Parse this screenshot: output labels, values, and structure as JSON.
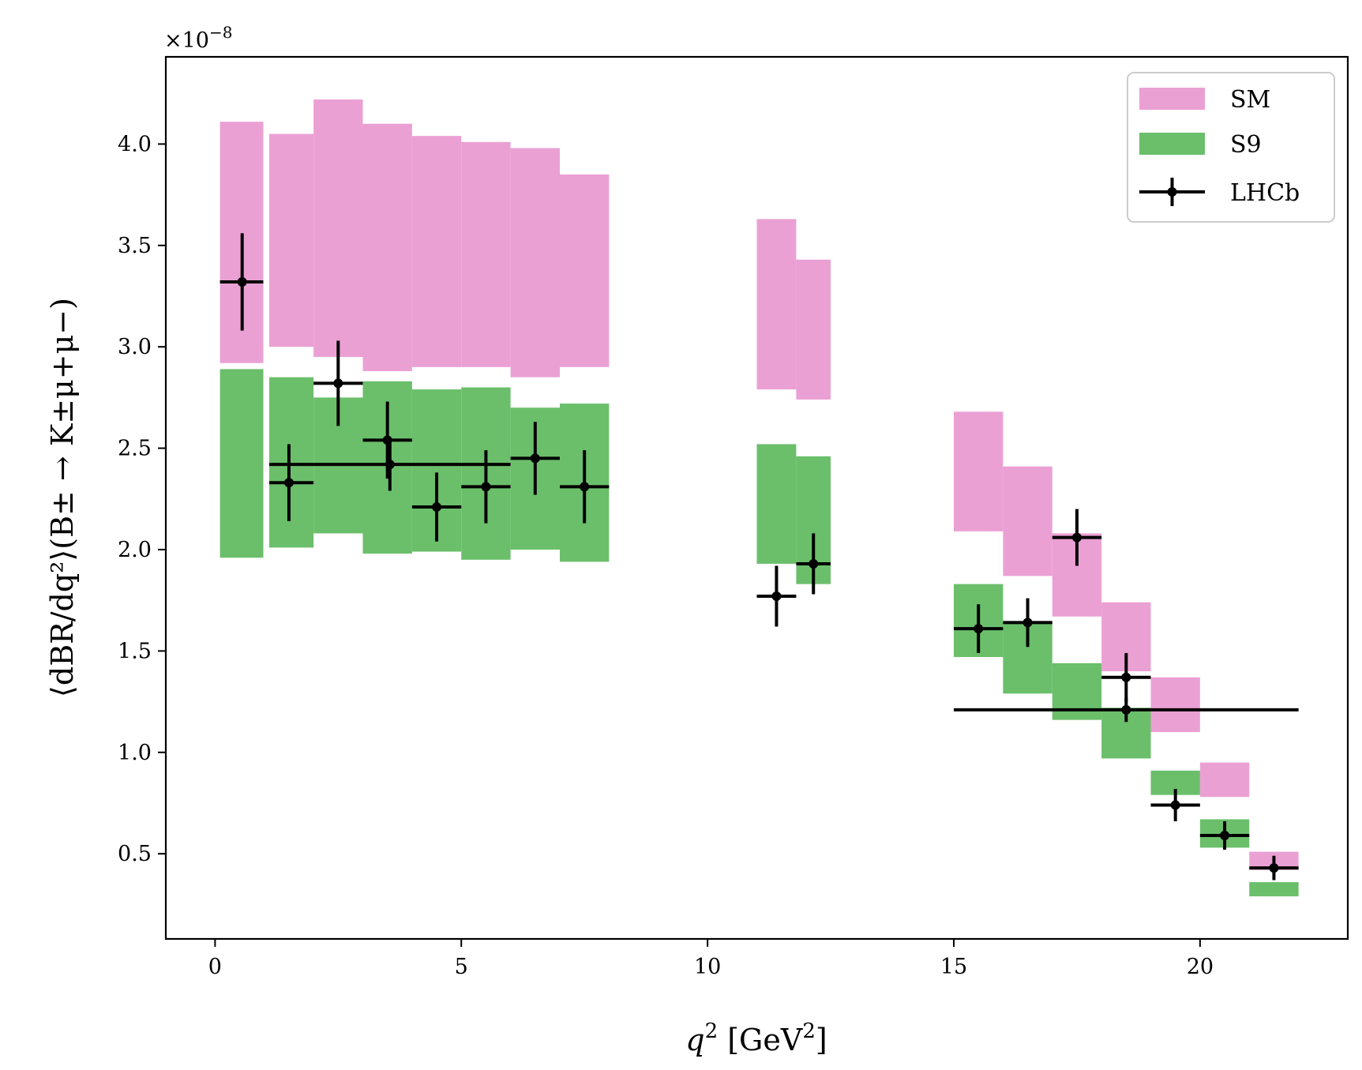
{
  "chart_data": {
    "type": "bar",
    "xlabel_var": "q",
    "xlabel_sup": "2",
    "xlabel_unit": "[GeV",
    "xlabel_unit_sup": "2",
    "xlabel_close": "]",
    "ylabel": "⟨dBR/dq²⟩(B± → K±μ+μ−)",
    "y_exponent_label": "×10",
    "y_exponent_sup": "−8",
    "xlim": [
      -1,
      23
    ],
    "ylim": [
      0.08,
      4.43
    ],
    "x_ticks": [
      0,
      5,
      10,
      15,
      20
    ],
    "x_tick_labels": [
      "0",
      "5",
      "10",
      "15",
      "20"
    ],
    "y_ticks": [
      0.5,
      1.0,
      1.5,
      2.0,
      2.5,
      3.0,
      3.5,
      4.0
    ],
    "y_tick_labels": [
      "0.5",
      "1.0",
      "1.5",
      "2.0",
      "2.5",
      "3.0",
      "3.5",
      "4.0"
    ],
    "legend": {
      "position": "top-right",
      "entries": [
        {
          "label": "SM",
          "kind": "band",
          "color": "#eba0d4"
        },
        {
          "label": "S9",
          "kind": "band",
          "color": "#6bbf6b"
        },
        {
          "label": "LHCb",
          "kind": "errorbar",
          "color": "#000000"
        }
      ]
    },
    "series": [
      {
        "name": "SM",
        "color": "#eba0d4",
        "bins": [
          {
            "x0": 0.1,
            "x1": 0.98,
            "lo": 2.92,
            "hi": 4.11
          },
          {
            "x0": 1.1,
            "x1": 2.0,
            "lo": 3.0,
            "hi": 4.05
          },
          {
            "x0": 2.0,
            "x1": 3.0,
            "lo": 2.95,
            "hi": 4.22
          },
          {
            "x0": 3.0,
            "x1": 4.0,
            "lo": 2.88,
            "hi": 4.1
          },
          {
            "x0": 4.0,
            "x1": 5.0,
            "lo": 2.9,
            "hi": 4.04
          },
          {
            "x0": 5.0,
            "x1": 6.0,
            "lo": 2.9,
            "hi": 4.01
          },
          {
            "x0": 6.0,
            "x1": 7.0,
            "lo": 2.85,
            "hi": 3.98
          },
          {
            "x0": 7.0,
            "x1": 8.0,
            "lo": 2.9,
            "hi": 3.85
          },
          {
            "x0": 11.0,
            "x1": 11.8,
            "lo": 2.79,
            "hi": 3.63
          },
          {
            "x0": 11.8,
            "x1": 12.5,
            "lo": 2.74,
            "hi": 3.43
          },
          {
            "x0": 15.0,
            "x1": 16.0,
            "lo": 2.09,
            "hi": 2.68
          },
          {
            "x0": 16.0,
            "x1": 17.0,
            "lo": 1.87,
            "hi": 2.41
          },
          {
            "x0": 17.0,
            "x1": 18.0,
            "lo": 1.67,
            "hi": 2.08
          },
          {
            "x0": 18.0,
            "x1": 19.0,
            "lo": 1.4,
            "hi": 1.74
          },
          {
            "x0": 19.0,
            "x1": 20.0,
            "lo": 1.1,
            "hi": 1.37
          },
          {
            "x0": 20.0,
            "x1": 21.0,
            "lo": 0.78,
            "hi": 0.95
          },
          {
            "x0": 21.0,
            "x1": 22.0,
            "lo": 0.42,
            "hi": 0.51
          }
        ]
      },
      {
        "name": "S9",
        "color": "#6bbf6b",
        "bins": [
          {
            "x0": 0.1,
            "x1": 0.98,
            "lo": 1.96,
            "hi": 2.89
          },
          {
            "x0": 1.1,
            "x1": 2.0,
            "lo": 2.01,
            "hi": 2.85
          },
          {
            "x0": 2.0,
            "x1": 3.0,
            "lo": 2.08,
            "hi": 2.75
          },
          {
            "x0": 3.0,
            "x1": 4.0,
            "lo": 1.98,
            "hi": 2.83
          },
          {
            "x0": 4.0,
            "x1": 5.0,
            "lo": 1.99,
            "hi": 2.79
          },
          {
            "x0": 5.0,
            "x1": 6.0,
            "lo": 1.95,
            "hi": 2.8
          },
          {
            "x0": 6.0,
            "x1": 7.0,
            "lo": 2.0,
            "hi": 2.7
          },
          {
            "x0": 7.0,
            "x1": 8.0,
            "lo": 1.94,
            "hi": 2.72
          },
          {
            "x0": 11.0,
            "x1": 11.8,
            "lo": 1.93,
            "hi": 2.52
          },
          {
            "x0": 11.8,
            "x1": 12.5,
            "lo": 1.83,
            "hi": 2.46
          },
          {
            "x0": 15.0,
            "x1": 16.0,
            "lo": 1.47,
            "hi": 1.83
          },
          {
            "x0": 16.0,
            "x1": 17.0,
            "lo": 1.29,
            "hi": 1.64
          },
          {
            "x0": 17.0,
            "x1": 18.0,
            "lo": 1.16,
            "hi": 1.44
          },
          {
            "x0": 18.0,
            "x1": 19.0,
            "lo": 0.97,
            "hi": 1.22
          },
          {
            "x0": 19.0,
            "x1": 20.0,
            "lo": 0.79,
            "hi": 0.91
          },
          {
            "x0": 20.0,
            "x1": 21.0,
            "lo": 0.53,
            "hi": 0.67
          },
          {
            "x0": 21.0,
            "x1": 22.0,
            "lo": 0.29,
            "hi": 0.36
          }
        ]
      },
      {
        "name": "LHCb",
        "color": "#000000",
        "points": [
          {
            "x": 0.55,
            "xlo": 0.1,
            "xhi": 0.98,
            "y": 3.32,
            "ylo": 3.08,
            "yhi": 3.56
          },
          {
            "x": 1.5,
            "xlo": 1.1,
            "xhi": 2.0,
            "y": 2.33,
            "ylo": 2.14,
            "yhi": 2.52
          },
          {
            "x": 2.5,
            "xlo": 2.0,
            "xhi": 3.0,
            "y": 2.82,
            "ylo": 2.61,
            "yhi": 3.03
          },
          {
            "x": 3.5,
            "xlo": 3.0,
            "xhi": 4.0,
            "y": 2.54,
            "ylo": 2.35,
            "yhi": 2.73
          },
          {
            "x": 3.55,
            "xlo": 1.1,
            "xhi": 6.0,
            "y": 2.42,
            "ylo": 2.29,
            "yhi": 2.55
          },
          {
            "x": 4.5,
            "xlo": 4.0,
            "xhi": 5.0,
            "y": 2.21,
            "ylo": 2.04,
            "yhi": 2.38
          },
          {
            "x": 5.5,
            "xlo": 5.0,
            "xhi": 6.0,
            "y": 2.31,
            "ylo": 2.13,
            "yhi": 2.49
          },
          {
            "x": 6.5,
            "xlo": 6.0,
            "xhi": 7.0,
            "y": 2.45,
            "ylo": 2.27,
            "yhi": 2.63
          },
          {
            "x": 7.5,
            "xlo": 7.0,
            "xhi": 8.0,
            "y": 2.31,
            "ylo": 2.13,
            "yhi": 2.49
          },
          {
            "x": 11.4,
            "xlo": 11.0,
            "xhi": 11.8,
            "y": 1.77,
            "ylo": 1.62,
            "yhi": 1.92
          },
          {
            "x": 12.15,
            "xlo": 11.8,
            "xhi": 12.5,
            "y": 1.93,
            "ylo": 1.78,
            "yhi": 2.08
          },
          {
            "x": 15.5,
            "xlo": 15.0,
            "xhi": 16.0,
            "y": 1.61,
            "ylo": 1.49,
            "yhi": 1.73
          },
          {
            "x": 16.5,
            "xlo": 16.0,
            "xhi": 17.0,
            "y": 1.64,
            "ylo": 1.52,
            "yhi": 1.76
          },
          {
            "x": 17.5,
            "xlo": 17.0,
            "xhi": 18.0,
            "y": 2.06,
            "ylo": 1.92,
            "yhi": 2.2
          },
          {
            "x": 18.5,
            "xlo": 18.0,
            "xhi": 19.0,
            "y": 1.37,
            "ylo": 1.25,
            "yhi": 1.49
          },
          {
            "x": 18.5,
            "xlo": 15.0,
            "xhi": 22.0,
            "y": 1.21,
            "ylo": 1.15,
            "yhi": 1.27
          },
          {
            "x": 19.5,
            "xlo": 19.0,
            "xhi": 20.0,
            "y": 0.74,
            "ylo": 0.66,
            "yhi": 0.82
          },
          {
            "x": 20.5,
            "xlo": 20.0,
            "xhi": 21.0,
            "y": 0.59,
            "ylo": 0.52,
            "yhi": 0.66
          },
          {
            "x": 21.5,
            "xlo": 21.0,
            "xhi": 22.0,
            "y": 0.43,
            "ylo": 0.37,
            "yhi": 0.49
          }
        ]
      }
    ]
  }
}
